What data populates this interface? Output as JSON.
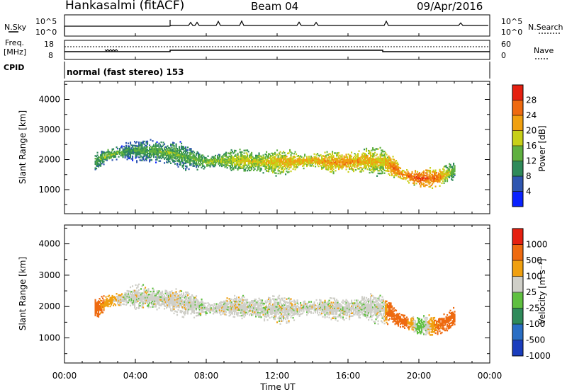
{
  "header": {
    "station": "Hankasalmi (fitACF)",
    "beam": "Beam 04",
    "date": "09/Apr/2016"
  },
  "noise_panel": {
    "left_label": "N.Sky",
    "right_label": "N.Search",
    "left_ticks": [
      "10^5",
      "10^0"
    ],
    "right_ticks": [
      "10^5",
      "10^0"
    ]
  },
  "freq_panel": {
    "left_label_line1": "Freq.",
    "left_label_line2": "[MHz]",
    "right_label": "Nave",
    "left_ticks": [
      "18",
      "8"
    ],
    "right_ticks": [
      "60",
      "0"
    ]
  },
  "cpid_panel": {
    "label": "CPID",
    "text": "normal (fast stereo) 153"
  },
  "chart_data": [
    {
      "type": "heatmap",
      "name": "power",
      "ylabel": "Slant Range [km]",
      "y_ticks": [
        "1000",
        "2000",
        "3000",
        "4000"
      ],
      "ylim": [
        200,
        4600
      ],
      "colorbar_label": "Power [dB]",
      "colorbar_ticks": [
        "4",
        "8",
        "12",
        "16",
        "20",
        "24",
        "28"
      ],
      "colorbar_colors": [
        "#0a22ff",
        "#2f56b0",
        "#2f8a5a",
        "#5fb040",
        "#c8d018",
        "#f0a010",
        "#ee6a10",
        "#e52010"
      ],
      "echo_band_hours": [
        1.7,
        2.5,
        3.5,
        4.0,
        5.0,
        6.0,
        7.0,
        8.0,
        9.0,
        10.0,
        11.0,
        12.0,
        13.0,
        14.0,
        15.0,
        16.0,
        17.0,
        18.0,
        18.5,
        19.0,
        20.0,
        21.0,
        22.0
      ],
      "echo_band_range_km": [
        1900,
        2150,
        2250,
        2300,
        2250,
        2200,
        2050,
        1900,
        1950,
        1950,
        1900,
        1900,
        1900,
        1950,
        1900,
        1900,
        1950,
        1900,
        1750,
        1500,
        1350,
        1350,
        1650
      ],
      "echo_band_power_db": [
        13,
        16,
        12,
        12,
        14,
        15,
        13,
        16,
        17,
        19,
        19,
        21,
        22,
        22,
        23,
        24,
        22,
        20,
        26,
        24,
        28,
        26,
        14
      ]
    },
    {
      "type": "heatmap",
      "name": "velocity",
      "ylabel": "Slant Range [km]",
      "y_ticks": [
        "1000",
        "2000",
        "3000",
        "4000"
      ],
      "ylim": [
        200,
        4600
      ],
      "colorbar_label": "Velocity [m s⁻¹]",
      "colorbar_ticks": [
        "1000",
        "500",
        "100",
        "25",
        "-25",
        "-100",
        "-500",
        "-1000"
      ],
      "colorbar_colors": [
        "#1a3dbd",
        "#2a6ec4",
        "#2f8a5a",
        "#5fc040",
        "#cfcfc8",
        "#f0a010",
        "#ee6a10",
        "#e52010"
      ],
      "echo_band_hours": [
        1.7,
        2.5,
        3.5,
        4.0,
        5.0,
        6.0,
        7.0,
        8.0,
        9.0,
        10.0,
        11.0,
        12.0,
        13.0,
        14.0,
        15.0,
        16.0,
        17.0,
        18.0,
        18.5,
        19.0,
        20.0,
        21.0,
        22.0
      ],
      "echo_band_range_km": [
        1900,
        2150,
        2250,
        2300,
        2250,
        2200,
        2050,
        1900,
        1950,
        1950,
        1900,
        1900,
        1900,
        1950,
        1900,
        1900,
        1950,
        1900,
        1750,
        1500,
        1350,
        1350,
        1650
      ],
      "echo_band_velocity_ms": [
        -150,
        -50,
        10,
        0,
        5,
        -5,
        0,
        5,
        0,
        0,
        5,
        0,
        0,
        0,
        0,
        0,
        5,
        0,
        -300,
        -200,
        80,
        -120,
        -150
      ]
    }
  ],
  "x_axis": {
    "label": "Time UT",
    "ticks": [
      "00:00",
      "04:00",
      "08:00",
      "12:00",
      "16:00",
      "20:00",
      "00:00"
    ],
    "xlim_hours": [
      0,
      24
    ]
  }
}
